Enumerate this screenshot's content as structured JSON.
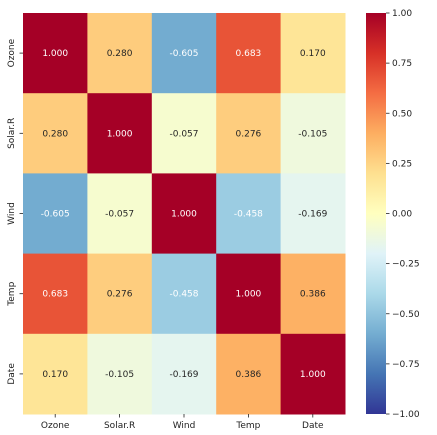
{
  "chart_data": {
    "type": "heatmap",
    "title": "",
    "xlabel": "",
    "ylabel": "",
    "x_categories": [
      "Ozone",
      "Solar.R",
      "Wind",
      "Temp",
      "Date"
    ],
    "y_categories": [
      "Ozone",
      "Solar.R",
      "Wind",
      "Temp",
      "Date"
    ],
    "values": [
      [
        1.0,
        0.28,
        -0.605,
        0.683,
        0.17
      ],
      [
        0.28,
        1.0,
        -0.057,
        0.276,
        -0.105
      ],
      [
        -0.605,
        -0.057,
        1.0,
        -0.458,
        -0.169
      ],
      [
        0.683,
        0.276,
        -0.458,
        1.0,
        0.386
      ],
      [
        0.17,
        -0.105,
        -0.169,
        0.386,
        1.0
      ]
    ],
    "value_format": "0.000",
    "colormap": "RdYlBu_r",
    "vmin": -1.0,
    "vmax": 1.0,
    "colorbar_ticks": [
      1.0,
      0.75,
      0.5,
      0.25,
      0.0,
      -0.25,
      -0.5,
      -0.75,
      -1.0
    ],
    "colorbar_tick_labels": [
      "1.00",
      "0.75",
      "0.50",
      "0.25",
      "0.00",
      "−0.25",
      "−0.50",
      "−0.75",
      "−1.00"
    ],
    "colors": {
      "stops": [
        "#313695",
        "#4575b4",
        "#74add1",
        "#abd9e9",
        "#e0f3f8",
        "#ffffbf",
        "#fee090",
        "#fdae61",
        "#f46d43",
        "#d73027",
        "#a50026"
      ],
      "light_text": "#ffffff",
      "dark_text": "#262626"
    }
  }
}
